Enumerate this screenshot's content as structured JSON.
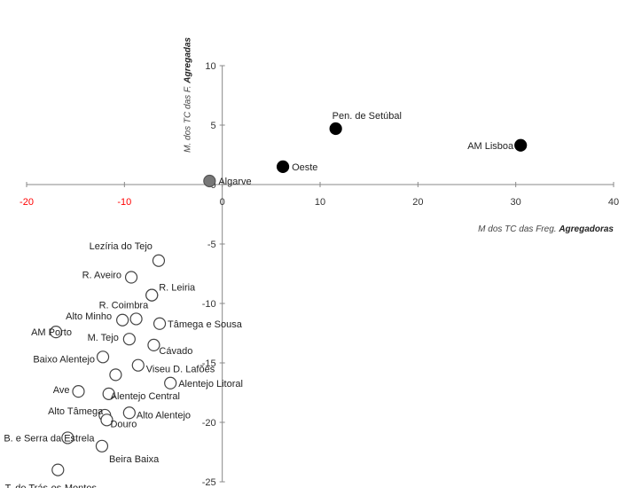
{
  "chart_data": {
    "type": "scatter",
    "title": "",
    "xlabel_prefix": "M dos TC das Freg.",
    "xlabel_bold": "Agregadoras",
    "ylabel_prefix": "M. dos TC das F.",
    "ylabel_bold": "Agregadas",
    "xlim": [
      -20,
      40
    ],
    "ylim": [
      -25,
      10
    ],
    "x_ticks": [
      -20,
      -10,
      0,
      10,
      20,
      30,
      40
    ],
    "y_ticks": [
      -25,
      -20,
      -15,
      -10,
      -5,
      0,
      5,
      10
    ],
    "grid": false,
    "colors": {
      "filled": "#000000",
      "gray": "#777777",
      "hollow_fill": "#ffffff",
      "hollow_stroke": "#444444",
      "neg_tick": "#ff0000",
      "tick": "#333333"
    },
    "points": [
      {
        "name": "Pen. de Setúbal",
        "x": 11.6,
        "y": 4.7,
        "style": "filled"
      },
      {
        "name": "AM Lisboa",
        "x": 30.5,
        "y": 3.3,
        "style": "filled"
      },
      {
        "name": "Oeste",
        "x": 6.2,
        "y": 1.5,
        "style": "filled"
      },
      {
        "name": "Algarve",
        "x": -1.3,
        "y": 0.3,
        "style": "gray"
      },
      {
        "name": "Lezíria do Tejo",
        "x": -6.5,
        "y": -6.4,
        "style": "hollow"
      },
      {
        "name": "R. Aveiro",
        "x": -9.3,
        "y": -7.8,
        "style": "hollow"
      },
      {
        "name": "R. Leiria",
        "x": -7.2,
        "y": -9.3,
        "style": "hollow"
      },
      {
        "name": "R. Coimbra",
        "x": -7.2,
        "y": -9.3,
        "style": "hollow"
      },
      {
        "name": "Alto Minho",
        "x": -10.2,
        "y": -11.4,
        "style": "hollow"
      },
      {
        "name": "Tâmega e Sousa",
        "x": -6.4,
        "y": -11.7,
        "style": "hollow"
      },
      {
        "name": "",
        "x": -8.8,
        "y": -11.3,
        "style": "hollow"
      },
      {
        "name": "AM Porto",
        "x": -17.0,
        "y": -12.4,
        "style": "hollow"
      },
      {
        "name": "M. Tejo",
        "x": -9.5,
        "y": -13.0,
        "style": "hollow"
      },
      {
        "name": "Cávado",
        "x": -7.0,
        "y": -13.5,
        "style": "hollow"
      },
      {
        "name": "Baixo Alentejo",
        "x": -12.2,
        "y": -14.5,
        "style": "hollow"
      },
      {
        "name": "Viseu D. Lafões",
        "x": -8.6,
        "y": -15.2,
        "style": "hollow"
      },
      {
        "name": "",
        "x": -10.9,
        "y": -16.0,
        "style": "hollow"
      },
      {
        "name": "Alentejo Litoral",
        "x": -5.3,
        "y": -16.7,
        "style": "hollow"
      },
      {
        "name": "Ave",
        "x": -14.7,
        "y": -17.4,
        "style": "hollow"
      },
      {
        "name": "Alentejo Central",
        "x": -11.6,
        "y": -17.6,
        "style": "hollow"
      },
      {
        "name": "Alto Tâmega",
        "x": -12.0,
        "y": -19.4,
        "style": "hollow"
      },
      {
        "name": "Alto Alentejo",
        "x": -9.5,
        "y": -19.2,
        "style": "hollow"
      },
      {
        "name": "Douro",
        "x": -11.8,
        "y": -19.8,
        "style": "hollow"
      },
      {
        "name": "B. e Serra da Estrela",
        "x": -15.8,
        "y": -21.3,
        "style": "hollow"
      },
      {
        "name": "Beira Baixa",
        "x": -12.3,
        "y": -22.0,
        "style": "hollow"
      },
      {
        "name": "T. de Trás-os-Montes",
        "x": -16.8,
        "y": -24.0,
        "style": "hollow"
      }
    ]
  }
}
